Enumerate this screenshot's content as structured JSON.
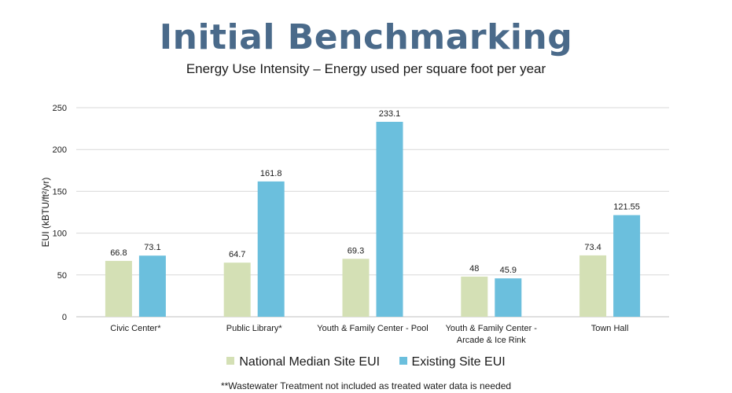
{
  "title": "Initial Benchmarking",
  "subtitle": "Energy Use Intensity – Energy used per square foot per year",
  "footnote": "**Wastewater Treatment not included as treated water data is needed",
  "chart_data": {
    "type": "bar",
    "categories": [
      [
        "Civic Center*"
      ],
      [
        "Public Library*"
      ],
      [
        "Youth & Family Center - Pool"
      ],
      [
        "Youth & Family Center -",
        "Arcade & Ice Rink"
      ],
      [
        "Town Hall"
      ]
    ],
    "series": [
      {
        "name": "National Median Site EUI",
        "color": "#d4e0b5",
        "values": [
          66.8,
          64.7,
          69.3,
          48,
          73.4
        ],
        "labels": [
          "66.8",
          "64.7",
          "69.3",
          "48",
          "73.4"
        ]
      },
      {
        "name": "Existing Site EUI",
        "color": "#6bbfdd",
        "values": [
          73.1,
          161.8,
          233.1,
          45.9,
          121.55
        ],
        "labels": [
          "73.1",
          "161.8",
          "233.1",
          "45.9",
          "121.55"
        ]
      }
    ],
    "ylabel": "EUI (kBTU/ft²/yr)",
    "xlabel": "",
    "ylim": [
      0,
      250
    ],
    "yticks": [
      0,
      50,
      100,
      150,
      200,
      250
    ],
    "grid": true,
    "legend_position": "bottom"
  }
}
